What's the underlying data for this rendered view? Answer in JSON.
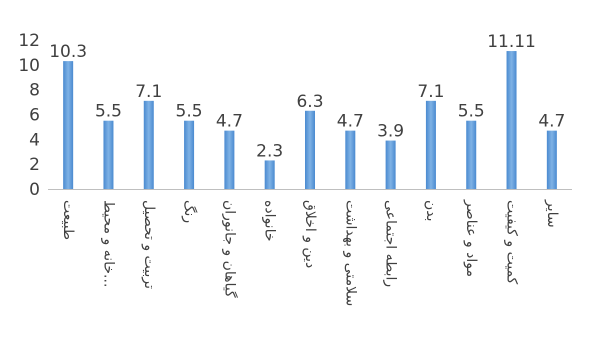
{
  "chart_data": {
    "type": "bar",
    "title": "",
    "xlabel": "",
    "ylabel": "",
    "ylim": [
      0,
      12
    ],
    "yticks": [
      0,
      2,
      4,
      6,
      8,
      10,
      12
    ],
    "grid": false,
    "legend": "none",
    "bar_color": "#5b9bd5",
    "categories": [
      "طبیعت",
      "خانه و محیط...",
      "تربیت و تحصیل",
      "رنگ",
      "گیاهان و جانوران",
      "خانواده",
      "دین و اخلاق",
      "سلامتی و بهداشت",
      "رابطه اجتماعی",
      "بدن",
      "مواد و عناصر",
      "کمیت و کیفیت",
      "سایر"
    ],
    "values": [
      10.3,
      5.5,
      7.1,
      5.5,
      4.7,
      2.3,
      6.3,
      4.7,
      3.9,
      7.1,
      5.5,
      11.11,
      4.7
    ],
    "data_labels": [
      "10.3",
      "5.5",
      "7.1",
      "5.5",
      "4.7",
      "2.3",
      "6.3",
      "4.7",
      "3.9",
      "7.1",
      "5.5",
      "11.11",
      "4.7"
    ]
  }
}
